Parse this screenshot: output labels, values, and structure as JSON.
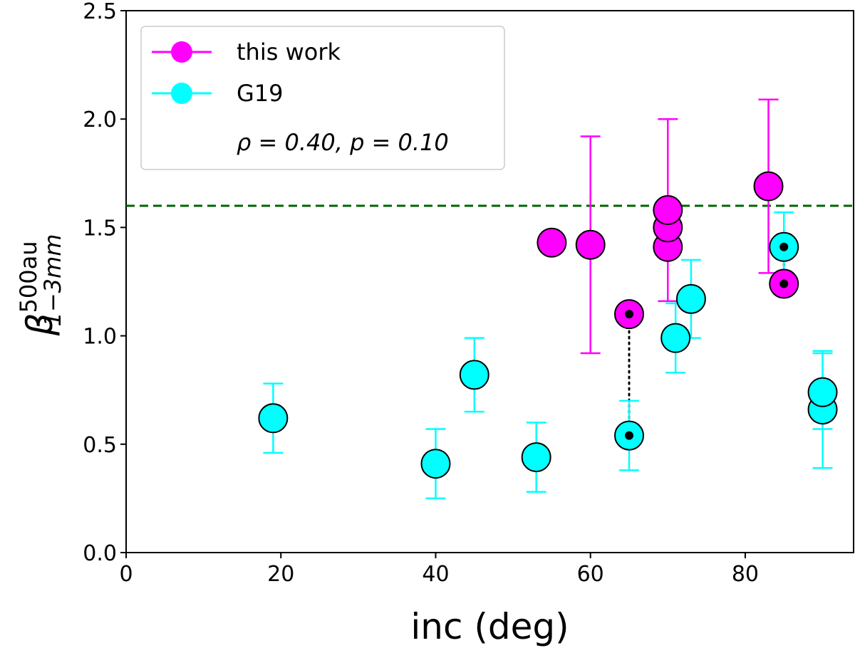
{
  "chart_data": {
    "type": "scatter",
    "xlabel": "inc (deg)",
    "ylabel": "β",
    "ylabel_superscript": "500au",
    "ylabel_subscript": "1−3mm",
    "xlim": [
      0,
      94
    ],
    "ylim": [
      0,
      2.5
    ],
    "xticks": [
      0,
      20,
      40,
      60,
      80
    ],
    "yticks": [
      0.0,
      0.5,
      1.0,
      1.5,
      2.0,
      2.5
    ],
    "xtick_labels": [
      "0",
      "20",
      "40",
      "60",
      "80"
    ],
    "ytick_labels": [
      "0.0",
      "0.5",
      "1.0",
      "1.5",
      "2.0",
      "2.5"
    ],
    "reference_line": {
      "y": 1.6,
      "style": "dashed",
      "color": "#006400"
    },
    "legend": {
      "location": "upper-left",
      "entries": [
        "this work",
        "G19"
      ],
      "stat_label": "ρ = 0.40, p = 0.10"
    },
    "series": [
      {
        "name": "this work",
        "color": "#ff00ff",
        "points": [
          {
            "x": 55,
            "y": 1.43
          },
          {
            "x": 60,
            "y": 1.42,
            "err_lo": 0.92,
            "err_hi": 1.92
          },
          {
            "x": 65,
            "y": 1.1,
            "marked": true
          },
          {
            "x": 70,
            "y": 1.41
          },
          {
            "x": 70,
            "y": 1.5
          },
          {
            "x": 70,
            "y": 1.58,
            "err_lo": 1.16,
            "err_hi": 2.0
          },
          {
            "x": 83,
            "y": 1.69,
            "err_lo": 1.29,
            "err_hi": 2.09
          },
          {
            "x": 85,
            "y": 1.24,
            "marked": true
          }
        ]
      },
      {
        "name": "G19",
        "color": "#00ffff",
        "points": [
          {
            "x": 19,
            "y": 0.62,
            "err_lo": 0.46,
            "err_hi": 0.78
          },
          {
            "x": 40,
            "y": 0.41,
            "err_lo": 0.25,
            "err_hi": 0.57
          },
          {
            "x": 45,
            "y": 0.82,
            "err_lo": 0.65,
            "err_hi": 0.99
          },
          {
            "x": 53,
            "y": 0.44,
            "err_lo": 0.28,
            "err_hi": 0.6
          },
          {
            "x": 65,
            "y": 0.54,
            "err_lo": 0.38,
            "err_hi": 0.7,
            "marked": true
          },
          {
            "x": 71,
            "y": 0.99,
            "err_lo": 0.83,
            "err_hi": 1.15
          },
          {
            "x": 73,
            "y": 1.17,
            "err_lo": 0.99,
            "err_hi": 1.35
          },
          {
            "x": 85,
            "y": 1.41,
            "err_lo": 1.25,
            "err_hi": 1.57,
            "marked": true
          },
          {
            "x": 90,
            "y": 0.66,
            "err_lo": 0.39,
            "err_hi": 0.93
          },
          {
            "x": 90,
            "y": 0.74,
            "err_lo": 0.57,
            "err_hi": 0.92
          }
        ]
      }
    ],
    "connectors": [
      {
        "x": 65,
        "y1": 1.1,
        "y2": 0.54,
        "style": "dotted"
      },
      {
        "x": 85,
        "y1": 1.41,
        "y2": 1.24,
        "style": "dotted"
      }
    ]
  }
}
